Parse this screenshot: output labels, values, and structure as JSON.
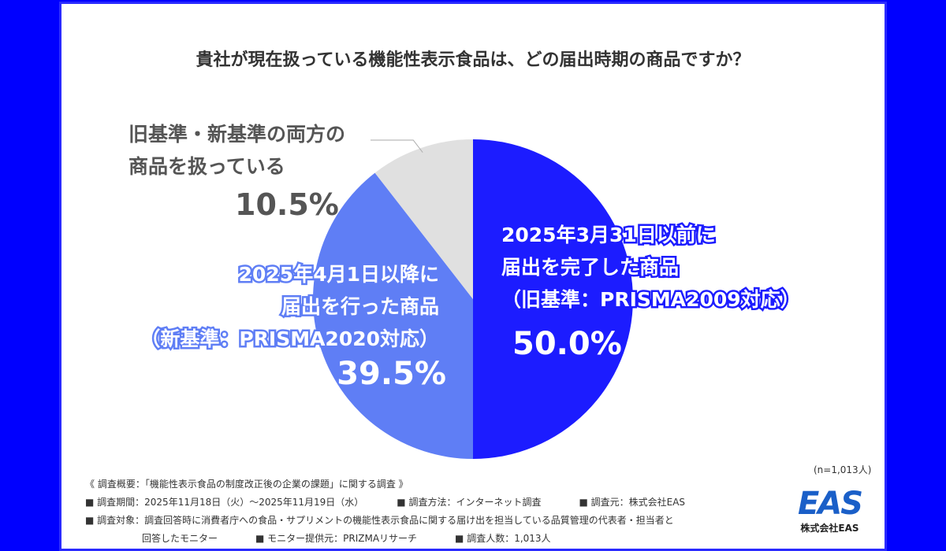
{
  "chart_data": {
    "type": "pie",
    "title": "貴社が現在扱っている機能性表示食品は、どの届出時期の商品ですか？",
    "slices": [
      {
        "label": [
          "2025年3月31日以前に",
          "届出を完了した商品",
          "（旧基準：PRISMA2009対応）"
        ],
        "value": 50.0,
        "value_label": "50.0%",
        "color": "#1c1cff"
      },
      {
        "label": [
          "2025年4月1日以降に",
          "届出を行った商品",
          "（新基準：PRISMA2020対応）"
        ],
        "value": 39.5,
        "value_label": "39.5%",
        "color": "#5f7ef5"
      },
      {
        "label": [
          "旧基準・新基準の両方の",
          "商品を扱っている"
        ],
        "value": 10.5,
        "value_label": "10.5%",
        "color": "#e0e0e0"
      }
    ],
    "start": "top",
    "direction": "clockwise",
    "sample_size": "(n=1,013人)"
  },
  "notes": [
    "《 調査概要：「機能性表示食品の制度改正後の企業の課題」に関する調査 》",
    "■ 調査期間：2025年11月18日（火）〜2025年11月19日（水）　　　　■ 調査方法：インターネット調査　　　　■ 調査元：株式会社EAS",
    "■ 調査対象：調査回答時に消費者庁への食品・サプリメントの機能性表示食品に関する届け出を担当している品質管理の代表者・担当者と",
    "　　　　　　回答したモニター　　　　■ モニター提供元：PRIZMAリサーチ　　　　■ 調査人数：1,013人"
  ],
  "logo": {
    "mark": "EAS",
    "company": "株式会社EAS"
  },
  "colors": {
    "background": "#0000ff",
    "frame": "#2a2aff"
  }
}
